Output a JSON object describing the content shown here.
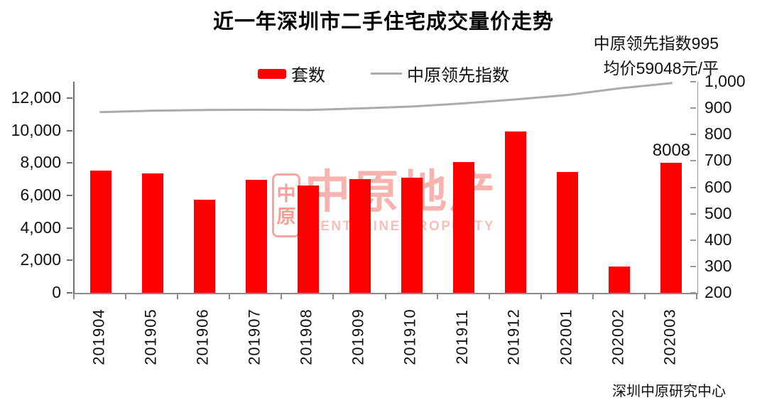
{
  "title": "近一年深圳市二手住宅成交量价走势",
  "annotations": {
    "line1": "中原领先指数995",
    "line2": "均价59048元/平"
  },
  "source": "深圳中原研究中心",
  "watermark": {
    "seal_top": "中",
    "seal_bottom": "原",
    "brand": "中原地产",
    "brand_en": "CENTALINE PROPERTY"
  },
  "chart_data": {
    "type": "bar",
    "title": "近一年深圳市二手住宅成交量价走势",
    "categories": [
      "201904",
      "201905",
      "201906",
      "201907",
      "201908",
      "201909",
      "201910",
      "201911",
      "201912",
      "202001",
      "202002",
      "202003"
    ],
    "series": [
      {
        "name": "套数",
        "type": "bar",
        "axis": "left",
        "color": "#FE0000",
        "values": [
          7550,
          7350,
          5750,
          6950,
          6600,
          7000,
          7100,
          8050,
          9950,
          7450,
          1600,
          8008
        ]
      },
      {
        "name": "中原领先指数",
        "type": "line",
        "axis": "right",
        "color": "#ABABAB",
        "values": [
          885,
          890,
          893,
          894,
          893,
          899,
          906,
          918,
          933,
          950,
          975,
          995
        ]
      }
    ],
    "left_axis": {
      "ticks": [
        0,
        2000,
        4000,
        6000,
        8000,
        10000,
        12000
      ],
      "plot_max": 13000
    },
    "right_axis": {
      "min": 200,
      "max": 1000,
      "step": 100,
      "ticks": [
        200,
        300,
        400,
        500,
        600,
        700,
        800,
        900,
        1000
      ]
    },
    "data_label": {
      "category": "202003",
      "value": "8008"
    },
    "legend_position": "top",
    "grid": false
  }
}
